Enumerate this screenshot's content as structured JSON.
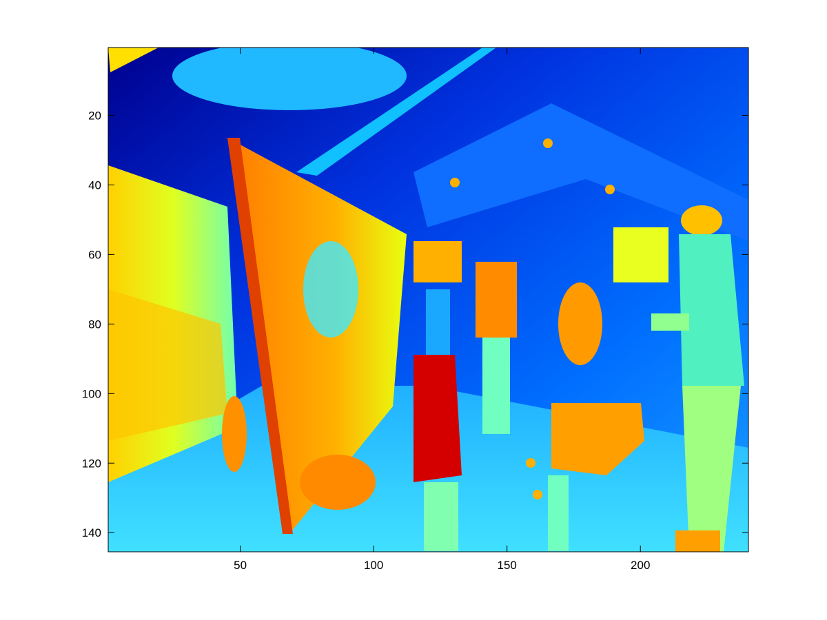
{
  "chart_data": {
    "type": "heatmap",
    "colormap": "jet",
    "image_size": {
      "columns": 240,
      "rows": 145
    },
    "x_axis": {
      "lim": [
        0.5,
        240.5
      ],
      "ticks": [
        50,
        100,
        150,
        200
      ],
      "tick_labels": [
        "50",
        "100",
        "150",
        "200"
      ]
    },
    "y_axis": {
      "lim": [
        0.5,
        145.5
      ],
      "reversed": true,
      "ticks": [
        20,
        40,
        60,
        80,
        100,
        120,
        140
      ],
      "tick_labels": [
        "20",
        "40",
        "60",
        "80",
        "100",
        "120",
        "140"
      ]
    },
    "grid": false,
    "colors": {
      "background_gradient": [
        "#00008f",
        "#0033e0",
        "#006fff",
        "#1aa0ff"
      ],
      "wall_left": "#bfff40",
      "canvas_board": "#ff9a00",
      "canvas_edge": "#e04000",
      "bag": "#ff9f00",
      "hot_red": "#d40000",
      "floor": "#30c8ff",
      "ceiling_strip": "#10c0ff",
      "figure_cyan": "#70ffc0"
    }
  }
}
